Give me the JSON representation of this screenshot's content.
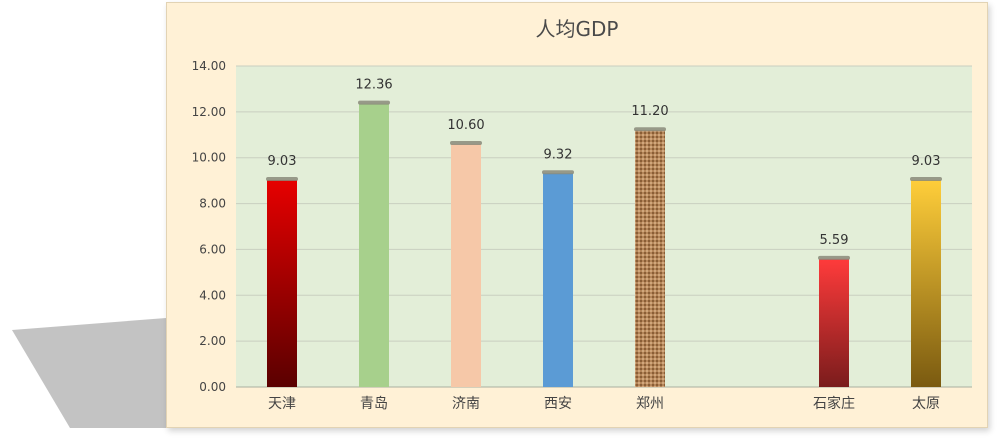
{
  "chart_data": {
    "type": "bar",
    "title": "人均GDP",
    "categories": [
      "天津",
      "青岛",
      "济南",
      "西安",
      "郑州",
      "",
      "石家庄",
      "太原"
    ],
    "values": [
      9.03,
      12.36,
      10.6,
      9.32,
      11.2,
      null,
      5.59,
      9.03
    ],
    "data_labels": [
      "9.03",
      "12.36",
      "10.60",
      "9.32",
      "11.20",
      "",
      "5.59",
      "9.03"
    ],
    "ylim": [
      0,
      14
    ],
    "yticks": [
      "0.00",
      "2.00",
      "4.00",
      "6.00",
      "8.00",
      "10.00",
      "12.00",
      "14.00"
    ],
    "grid": true,
    "legend": "none",
    "bar_fills": [
      {
        "type": "gradient",
        "top": "#e60000",
        "bottom": "#5a0000"
      },
      {
        "type": "solid",
        "color": "#a7d08c"
      },
      {
        "type": "solid",
        "color": "#f6c8a8"
      },
      {
        "type": "solid",
        "color": "#5b9bd5"
      },
      {
        "type": "texture",
        "color": "#b5865a"
      },
      null,
      {
        "type": "gradient",
        "top": "#ff3b3b",
        "bottom": "#7a1c1c"
      },
      {
        "type": "gradient",
        "top": "#ffce3a",
        "bottom": "#7a5a10"
      }
    ],
    "colors": {
      "plot_bg": "#e3eed8",
      "card_bg": "#fff1d6",
      "grid": "#c9cfc0",
      "cap": "#8a8a7a"
    }
  }
}
